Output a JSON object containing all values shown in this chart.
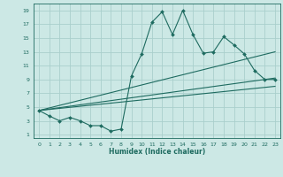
{
  "xlabel": "Humidex (Indice chaleur)",
  "bg_color": "#cce8e5",
  "line_color": "#1e6b60",
  "grid_color": "#aacfcc",
  "xlim": [
    -0.5,
    23.5
  ],
  "ylim": [
    0.5,
    20
  ],
  "xticks": [
    0,
    1,
    2,
    3,
    4,
    5,
    6,
    7,
    8,
    9,
    10,
    11,
    12,
    13,
    14,
    15,
    16,
    17,
    18,
    19,
    20,
    21,
    22,
    23
  ],
  "yticks": [
    1,
    3,
    5,
    7,
    9,
    11,
    13,
    15,
    17,
    19
  ],
  "line1_x": [
    0,
    1,
    2,
    3,
    4,
    5,
    6,
    7,
    8,
    9,
    10,
    11,
    12,
    13,
    14,
    15,
    16,
    17,
    18,
    19,
    20,
    21,
    22,
    23
  ],
  "line1_y": [
    4.5,
    3.7,
    3.0,
    3.5,
    3.0,
    2.3,
    2.3,
    1.5,
    1.8,
    9.5,
    12.7,
    17.3,
    18.8,
    15.5,
    19.0,
    15.5,
    12.8,
    13.0,
    15.2,
    14.0,
    12.7,
    10.3,
    9.0,
    9.0
  ],
  "line2_x": [
    0,
    23
  ],
  "line2_y": [
    4.5,
    13.0
  ],
  "line3_x": [
    0,
    23
  ],
  "line3_y": [
    4.5,
    9.2
  ],
  "line4_x": [
    0,
    23
  ],
  "line4_y": [
    4.5,
    8.0
  ]
}
